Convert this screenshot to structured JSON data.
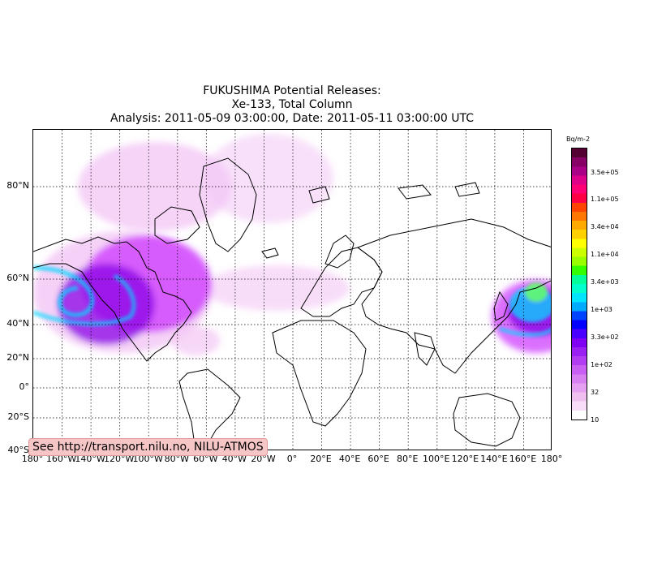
{
  "title": {
    "line1": "FUKUSHIMA Potential Releases:",
    "line2": "Xe-133, Total Column",
    "line3": "Analysis: 2011-05-09  03:00:00, Date: 2011-05-11  03:00:00 UTC"
  },
  "map": {
    "projection": "mercator",
    "lat_labels": [
      "80°N",
      "60°N",
      "40°N",
      "20°N",
      "0°",
      "20°S",
      "40°S"
    ],
    "lon_labels": [
      "180°",
      "160°W",
      "140°W",
      "120°W",
      "100°W",
      "80°W",
      "60°W",
      "40°W",
      "20°W",
      "0°",
      "20°E",
      "40°E",
      "60°E",
      "80°E",
      "100°E",
      "120°E",
      "140°E",
      "160°E",
      "180°"
    ],
    "plume_colors": {
      "light": "#f3c6f5",
      "mid": "#cc33ff",
      "dark": "#8a00e6",
      "cyan": "#00d9ff",
      "green": "#66ff66"
    }
  },
  "colorbar": {
    "title": "Bq/m-2",
    "ticks": [
      "3.5e+05",
      "1.1e+05",
      "3.4e+04",
      "1.1e+04",
      "3.4e+03",
      "1e+03",
      "3.3e+02",
      "1e+02",
      "32",
      "10"
    ],
    "colors": [
      "#ffffff",
      "#f7ddf7",
      "#efc0ef",
      "#e6a0f2",
      "#d880f2",
      "#c85ef2",
      "#b13cf2",
      "#9a1ff2",
      "#7f00f2",
      "#4a00ff",
      "#0000ff",
      "#0044ff",
      "#00aaff",
      "#00e5ff",
      "#00ffcc",
      "#00ff99",
      "#33ff00",
      "#99ff00",
      "#ccff00",
      "#ffff00",
      "#ffd000",
      "#ffaa00",
      "#ff7700",
      "#ff4400",
      "#ff0044",
      "#ff0077",
      "#dd0088",
      "#aa0088",
      "#880066",
      "#550033"
    ]
  },
  "attribution": "See http://transport.nilu.no, NILU-ATMOS"
}
